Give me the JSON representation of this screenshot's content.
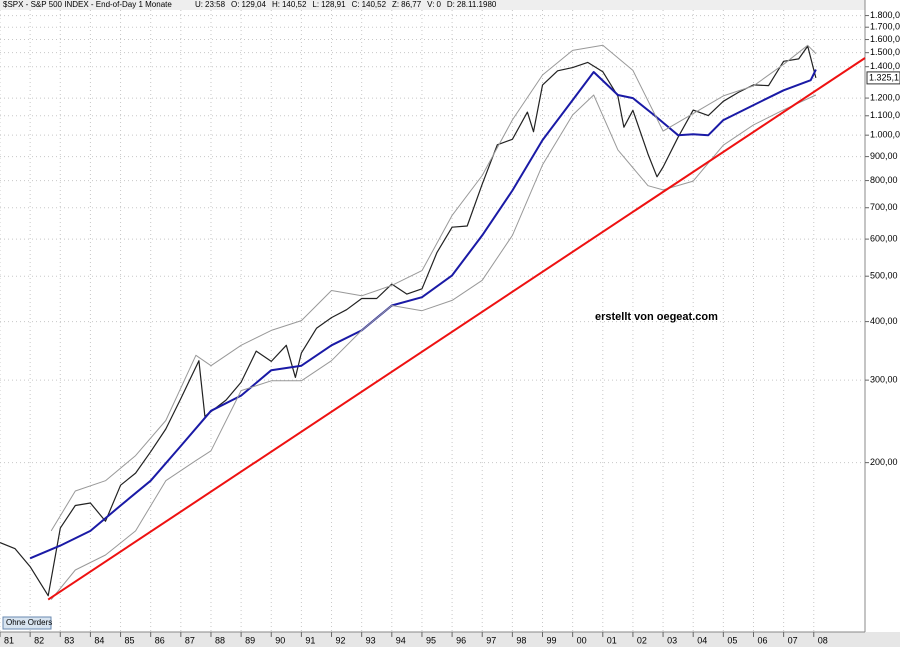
{
  "header": {
    "symbol": "$SPX - S&P 500 INDEX - End-of-Day 1 Monate",
    "fields": [
      {
        "key": "U:",
        "value": "23:58"
      },
      {
        "key": "O:",
        "value": "129,04"
      },
      {
        "key": "H:",
        "value": "140,52"
      },
      {
        "key": "L:",
        "value": "128,91"
      },
      {
        "key": "C:",
        "value": "140,52"
      },
      {
        "key": "Z:",
        "value": "86,77"
      },
      {
        "key": "V:",
        "value": "0"
      },
      {
        "key": "D:",
        "value": "28.11.1980"
      }
    ]
  },
  "button": "Ohne Orders",
  "chart_data": {
    "type": "line",
    "log_scale": true,
    "grid": true,
    "annotation": "erstellt von oegeat.com",
    "xlim": [
      1981,
      2009.7
    ],
    "xticks": [
      {
        "value": 1981,
        "label": "81"
      },
      {
        "value": 1982,
        "label": "82"
      },
      {
        "value": 1983,
        "label": "83"
      },
      {
        "value": 1984,
        "label": "84"
      },
      {
        "value": 1985,
        "label": "85"
      },
      {
        "value": 1986,
        "label": "86"
      },
      {
        "value": 1987,
        "label": "87"
      },
      {
        "value": 1988,
        "label": "88"
      },
      {
        "value": 1989,
        "label": "89"
      },
      {
        "value": 1990,
        "label": "90"
      },
      {
        "value": 1991,
        "label": "91"
      },
      {
        "value": 1992,
        "label": "92"
      },
      {
        "value": 1993,
        "label": "93"
      },
      {
        "value": 1994,
        "label": "94"
      },
      {
        "value": 1995,
        "label": "95"
      },
      {
        "value": 1996,
        "label": "96"
      },
      {
        "value": 1997,
        "label": "97"
      },
      {
        "value": 1998,
        "label": "98"
      },
      {
        "value": 1999,
        "label": "99"
      },
      {
        "value": 2000,
        "label": "00"
      },
      {
        "value": 2001,
        "label": "01"
      },
      {
        "value": 2002,
        "label": "02"
      },
      {
        "value": 2003,
        "label": "03"
      },
      {
        "value": 2004,
        "label": "04"
      },
      {
        "value": 2005,
        "label": "05"
      },
      {
        "value": 2006,
        "label": "06"
      },
      {
        "value": 2007,
        "label": "07"
      },
      {
        "value": 2008,
        "label": "08"
      }
    ],
    "ylim": [
      87,
      1850
    ],
    "yticks": [
      {
        "value": 200,
        "label": "200,00"
      },
      {
        "value": 300,
        "label": "300,00"
      },
      {
        "value": 400,
        "label": "400,00"
      },
      {
        "value": 500,
        "label": "500,00"
      },
      {
        "value": 600,
        "label": "600,00"
      },
      {
        "value": 700,
        "label": "700,00"
      },
      {
        "value": 800,
        "label": "800,00"
      },
      {
        "value": 900,
        "label": "900,00"
      },
      {
        "value": 1000,
        "label": "1.000,00"
      },
      {
        "value": 1100,
        "label": "1.100,00"
      },
      {
        "value": 1200,
        "label": "1.200,00"
      },
      {
        "value": 1400,
        "label": "1.400,00"
      },
      {
        "value": 1500,
        "label": "1.500,00"
      },
      {
        "value": 1600,
        "label": "1.600,00"
      },
      {
        "value": 1700,
        "label": "1.700,00"
      },
      {
        "value": 1800,
        "label": "1.800,00"
      }
    ],
    "series": [
      {
        "color": "#222222",
        "width": 1.2,
        "x": [
          1981,
          1981.5,
          1982,
          1982.6,
          1983,
          1983.5,
          1984,
          1984.5,
          1985,
          1985.5,
          1986,
          1986.5,
          1987,
          1987.6,
          1987.8,
          1988,
          1988.5,
          1989,
          1989.5,
          1990,
          1990.5,
          1990.8,
          1991,
          1991.5,
          1992,
          1992.5,
          1993,
          1993.5,
          1994,
          1994.5,
          1995,
          1995.5,
          1996,
          1996.5,
          1997,
          1997.5,
          1998,
          1998.5,
          1998.7,
          1999,
          1999.5,
          2000,
          2000.5,
          2001,
          2001.5,
          2001.7,
          2002,
          2002.5,
          2002.8,
          2003,
          2003.5,
          2004,
          2004.5,
          2005,
          2005.5,
          2006,
          2006.5,
          2007,
          2007.5,
          2007.8,
          2008,
          2008.07
        ],
        "values": [
          135,
          131,
          120,
          104,
          145,
          162,
          164,
          150,
          179,
          190,
          211,
          236,
          274,
          330,
          251,
          257,
          272,
          297,
          346,
          329,
          356,
          304,
          343,
          387,
          408,
          424,
          448,
          448,
          481,
          458,
          470,
          562,
          636,
          640,
          786,
          954,
          980,
          1120,
          1017,
          1279,
          1372,
          1394,
          1430,
          1366,
          1211,
          1040,
          1130,
          911,
          815,
          855,
          990,
          1131,
          1101,
          1181,
          1234,
          1280,
          1276,
          1438,
          1455,
          1549,
          1378,
          1325.1
        ],
        "value_labels": [
          null,
          null,
          null,
          null,
          null,
          null,
          null,
          null,
          null,
          null,
          null,
          null,
          null,
          null,
          null,
          null,
          null,
          null,
          null,
          null,
          null,
          null,
          null,
          null,
          null,
          null,
          null,
          null,
          null,
          null,
          null,
          null,
          null,
          null,
          null,
          null,
          null,
          null,
          null,
          null,
          null,
          null,
          null,
          null,
          null,
          null,
          null,
          null,
          null,
          null,
          null,
          null,
          null,
          null,
          null,
          null,
          null,
          null,
          null,
          null,
          null,
          "1.325,1"
        ]
      },
      {
        "color": "#1a1aa6",
        "width": 2,
        "x": [
          1982,
          1983,
          1984,
          1985,
          1986,
          1987,
          1988,
          1989,
          1990,
          1991,
          1992,
          1993,
          1994,
          1995,
          1996,
          1997,
          1998,
          1999,
          2000,
          2000.7,
          2001.5,
          2002,
          2002.7,
          2003.5,
          2004,
          2004.5,
          2005,
          2006,
          2007,
          2007.9,
          2008.07
        ],
        "values": [
          125,
          133,
          143,
          162,
          183,
          217,
          258,
          278,
          315,
          322,
          356,
          383,
          433,
          451,
          502,
          611,
          762,
          976,
          1188,
          1364,
          1218,
          1200,
          1104,
          1000,
          1005,
          1000,
          1077,
          1159,
          1247,
          1310,
          1380
        ]
      },
      {
        "color": "#999999",
        "width": 1,
        "x": [
          1982.7,
          1983.5,
          1984.5,
          1985.5,
          1986.5,
          1987.5,
          1988,
          1989,
          1990,
          1991,
          1992,
          1993,
          1994,
          1995,
          1996,
          1997,
          1998,
          1999,
          2000,
          2001,
          2002,
          2003,
          2004,
          2005,
          2006,
          2007,
          2007.8,
          2008.07
        ],
        "values": [
          143,
          174,
          183,
          207,
          246,
          339,
          322,
          356,
          383,
          402,
          466,
          454,
          478,
          514,
          674,
          820,
          1078,
          1344,
          1517,
          1555,
          1375,
          1020,
          1112,
          1213,
          1274,
          1417,
          1555,
          1493
        ]
      },
      {
        "color": "#999999",
        "width": 1,
        "x": [
          1982.7,
          1983.5,
          1984.5,
          1985.5,
          1986.5,
          1987.5,
          1988,
          1989,
          1990,
          1991,
          1992,
          1993,
          1994,
          1995,
          1996,
          1997,
          1998,
          1999,
          2000,
          2000.7,
          2001.5,
          2002.5,
          2003,
          2004,
          2005,
          2006,
          2007,
          2008.07
        ],
        "values": [
          102,
          118,
          127,
          143,
          183,
          202,
          212,
          285,
          299,
          299,
          330,
          383,
          433,
          422,
          444,
          490,
          611,
          864,
          1104,
          1218,
          930,
          780,
          764,
          798,
          952,
          1052,
          1133,
          1218
        ]
      },
      {
        "color": "#ee1111",
        "width": 2,
        "x": [
          1982.6,
          2009.7
        ],
        "values": [
          102,
          1461
        ]
      }
    ]
  }
}
